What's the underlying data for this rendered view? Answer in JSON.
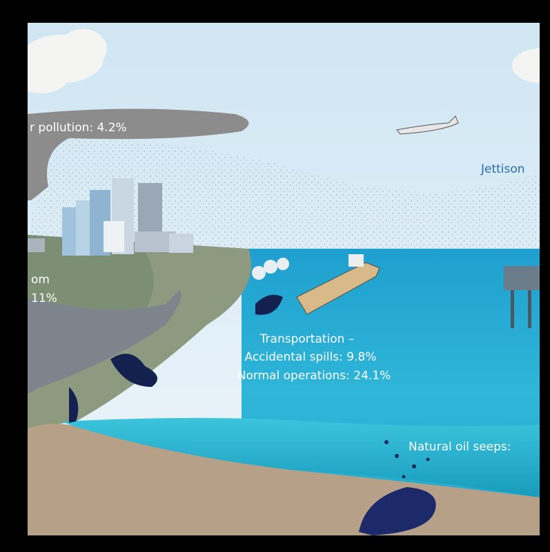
{
  "labels": {
    "air_pollution": "r pollution: 4.2%",
    "jettison": "Jettison",
    "runoff_line1": "om",
    "runoff_line2": "11%",
    "transport_title": "Transportation –",
    "accidental": "Accidental spills: 9.8%",
    "normal": "Normal operations: 24.1%",
    "seeps": "Natural oil seeps:"
  }
}
